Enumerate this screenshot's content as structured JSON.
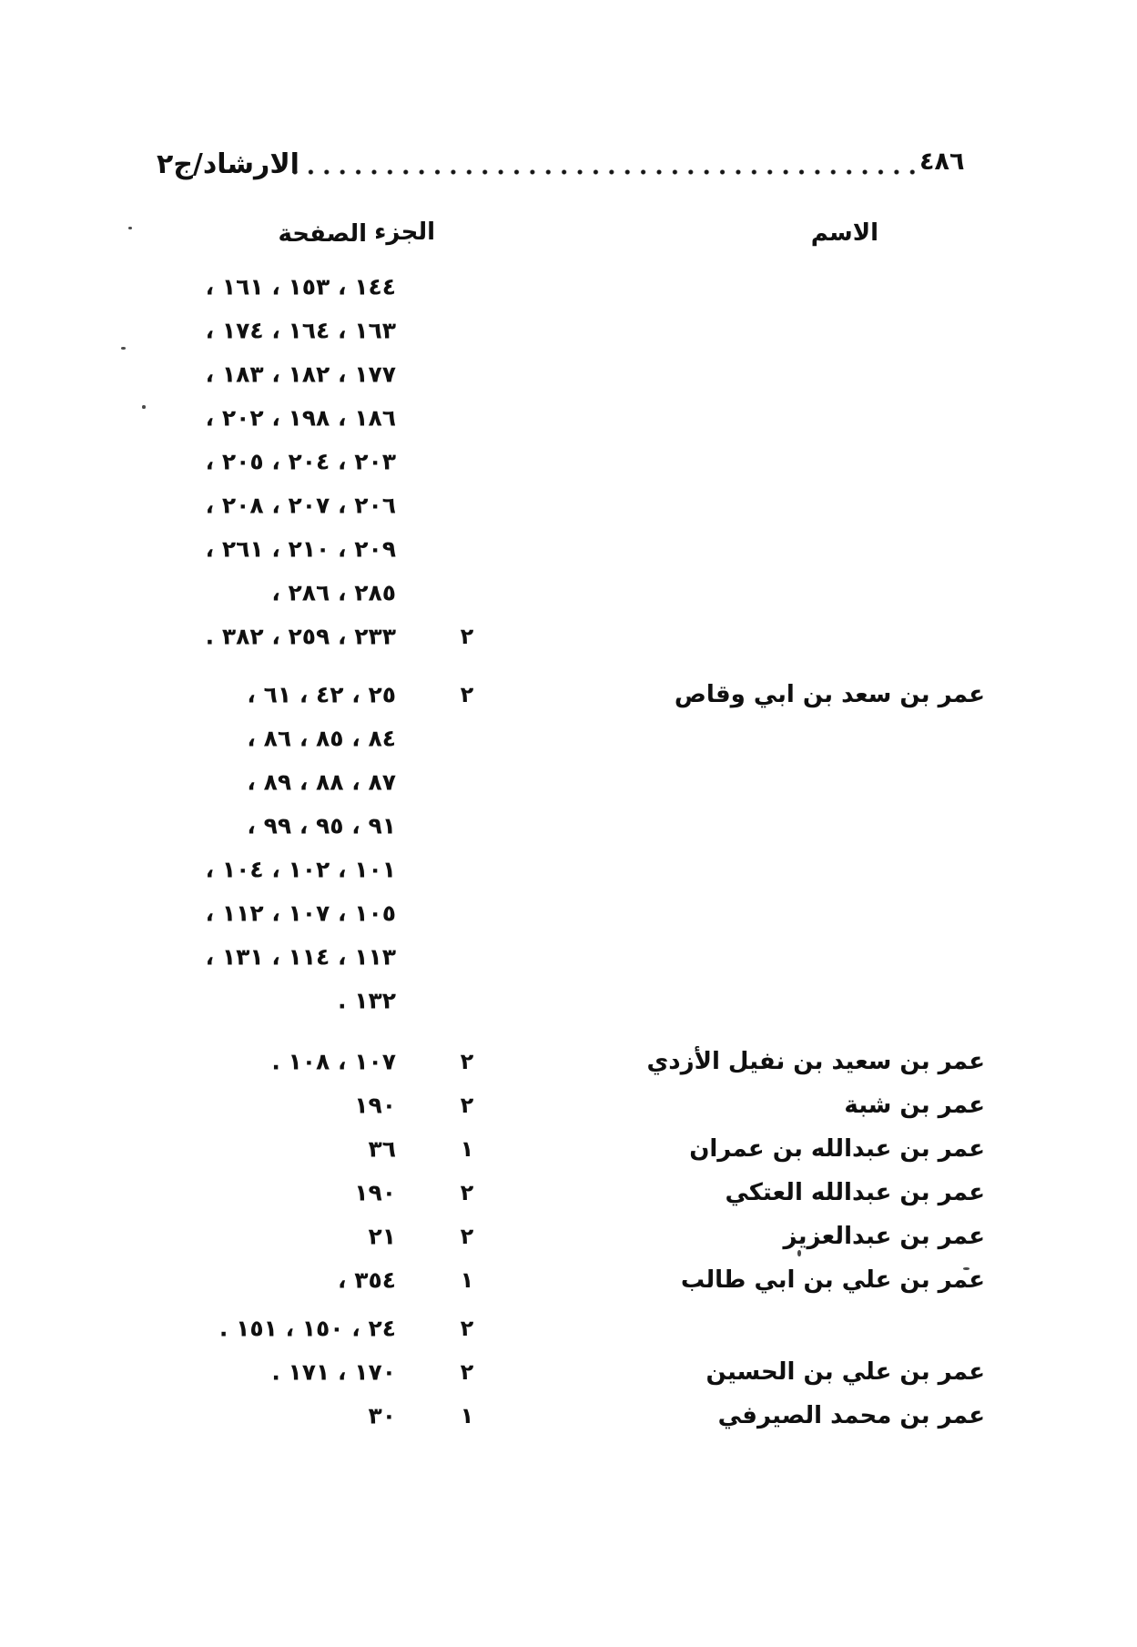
{
  "header": {
    "book_title": "الارشاد/ج٢",
    "page_number": "٤٨٦"
  },
  "columns": {
    "name": "الاسم",
    "volume": "الجزء",
    "page": "الصفحة"
  },
  "table": {
    "rows": [
      {
        "pages": "١٤٤ ، ١٥٣ ، ١٦١ ،",
        "juz": "",
        "name": "",
        "gap": 0
      },
      {
        "pages": "١٦٣ ، ١٦٤ ، ١٧٤ ،",
        "juz": "",
        "name": "",
        "gap": 0
      },
      {
        "pages": "١٧٧ ، ١٨٢ ، ١٨٣ ،",
        "juz": "",
        "name": "",
        "gap": 0
      },
      {
        "pages": "١٨٦ ، ١٩٨ ، ٢٠٢ ،",
        "juz": "",
        "name": "",
        "gap": 0
      },
      {
        "pages": "٢٠٣ ، ٢٠٤ ، ٢٠٥ ،",
        "juz": "",
        "name": "",
        "gap": 0
      },
      {
        "pages": "٢٠٦ ، ٢٠٧ ، ٢٠٨ ،",
        "juz": "",
        "name": "",
        "gap": 0
      },
      {
        "pages": "٢٠٩ ، ٢١٠ ، ٢٦١ ،",
        "juz": "",
        "name": "",
        "gap": 0
      },
      {
        "pages": "٢٨٥ ، ٢٨٦ ،",
        "juz": "",
        "name": "",
        "gap": 0
      },
      {
        "pages": "٢٣٣ ، ٢٥٩ ، ٣٨٢ .",
        "juz": "٢",
        "name": "",
        "gap": 0
      },
      {
        "pages": "٢٥ ، ٤٢ ، ٦١ ،",
        "juz": "٢",
        "name": "عمر بن سعد بن ابي وقاص",
        "gap": 16
      },
      {
        "pages": "٨٤ ، ٨٥ ، ٨٦ ،",
        "juz": "",
        "name": "",
        "gap": 0
      },
      {
        "pages": "٨٧ ، ٨٨ ، ٨٩ ،",
        "juz": "",
        "name": "",
        "gap": 0
      },
      {
        "pages": "٩١ ، ٩٥ ، ٩٩ ،",
        "juz": "",
        "name": "",
        "gap": 0
      },
      {
        "pages": "١٠١ ، ١٠٢ ، ١٠٤ ،",
        "juz": "",
        "name": "",
        "gap": 0
      },
      {
        "pages": "١٠٥ ، ١٠٧ ، ١١٢ ،",
        "juz": "",
        "name": "",
        "gap": 0
      },
      {
        "pages": "١١٣ ، ١١٤ ، ١٣١ ،",
        "juz": "",
        "name": "",
        "gap": 0
      },
      {
        "pages": "١٣٢ .",
        "juz": "",
        "name": "",
        "gap": 0
      },
      {
        "pages": "١٠٧ ، ١٠٨ .",
        "juz": "٢",
        "name": "عمر بن سعيد بن نفيل الأزدي",
        "gap": 19
      },
      {
        "pages": "١٩٠",
        "juz": "٢",
        "name": "عمر بن شبة",
        "gap": 0
      },
      {
        "pages": "٣٦",
        "juz": "١",
        "name": "عمر بن عبدالله بن عمران",
        "gap": 0
      },
      {
        "pages": "١٩٠",
        "juz": "٢",
        "name": "عمر بن عبدالله العتكي",
        "gap": 0
      },
      {
        "pages": "٢١",
        "juz": "٢",
        "name": "عمر بن عبدالعزيز",
        "gap": 0
      },
      {
        "pages": "٣٥٤ ،",
        "juz": "١",
        "name": "عمر بن علي بن ابي طالب",
        "gap": 0
      },
      {
        "pages": "٢٤ ، ١٥٠ ، ١٥١ .",
        "juz": "٢",
        "name": "",
        "gap": 5
      },
      {
        "pages": "١٧٠ ، ١٧١ .",
        "juz": "٢",
        "name": "عمر بن علي بن الحسين",
        "gap": 0
      },
      {
        "pages": "٣٠",
        "juz": "١",
        "name": "عمر بن محمد الصيرفي",
        "gap": 0
      }
    ]
  }
}
